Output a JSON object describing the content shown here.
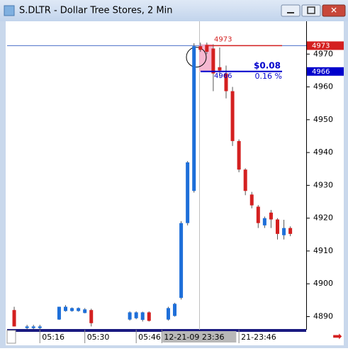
{
  "chart_data": {
    "type": "candlestick",
    "title": "S.DLTR - Dollar Tree Stores, 2 Min",
    "up_color": "#1e6fd9",
    "down_color": "#d42020",
    "categories": [
      null,
      null,
      null,
      null,
      "05:16",
      null,
      null,
      null,
      null,
      null,
      null,
      "05:30",
      null,
      null,
      null,
      null,
      null,
      null,
      null,
      "05:46",
      null,
      null,
      null,
      "12-21-09 23:36",
      null,
      null,
      null,
      null,
      null,
      null,
      null,
      null,
      null,
      null,
      null,
      "21-23:46",
      null,
      null,
      null,
      null,
      null,
      null,
      null,
      null
    ],
    "open": [
      4892,
      null,
      4886.5,
      4886.5,
      4886.5,
      null,
      null,
      4889.1,
      4891.7,
      4891.7,
      4891.7,
      4891.1,
      4892,
      null,
      null,
      null,
      null,
      null,
      4889.1,
      4889.5,
      4889,
      4891.3,
      null,
      null,
      4889.1,
      4890.2,
      4895.7,
      4918.5,
      4928.3,
      4972.4,
      4972.8,
      4971.7,
      4966,
      4964.1,
      4958.7,
      4943.5,
      4934.8,
      4927.2,
      4923.5,
      4917.8,
      4921.7,
      4919.6,
      4914.8,
      4917
    ],
    "high": [
      4893,
      null,
      4887.5,
      4887.5,
      4887.5,
      null,
      null,
      4893,
      4893.5,
      4892.8,
      4892.8,
      4892.6,
      4892.4,
      null,
      null,
      null,
      null,
      null,
      4891.6,
      4891.6,
      4891.5,
      4891.6,
      null,
      null,
      4893,
      4894.2,
      4919.1,
      4937.4,
      4973.3,
      4973.5,
      4973.5,
      4973,
      4972,
      4966.5,
      4960,
      4944,
      4935.2,
      4928,
      4924,
      4920.5,
      4922.5,
      4920,
      4919.5,
      4917.5
    ],
    "low": [
      4887,
      null,
      4886.2,
      4886.2,
      4886.2,
      null,
      null,
      4889,
      4891.5,
      4891.5,
      4891.5,
      4891,
      4887,
      null,
      null,
      null,
      null,
      null,
      4888.8,
      4889.2,
      4888.5,
      4888.5,
      null,
      null,
      4888.8,
      4890,
      4895.2,
      4917.8,
      4927.8,
      4970.7,
      4970,
      4958.7,
      4963,
      4956.5,
      4942,
      4934,
      4927,
      4923,
      4917,
      4917,
      4917,
      4913.5,
      4913.5,
      4914.5
    ],
    "close": [
      4887,
      null,
      4887,
      4887,
      4887,
      null,
      null,
      4893,
      4893,
      4892.6,
      4892.6,
      4892.2,
      4888,
      null,
      null,
      null,
      null,
      null,
      4891.3,
      4891.3,
      4891.3,
      4888.7,
      null,
      null,
      4892.6,
      4893.9,
      4918.5,
      4937,
      4972.4,
      4971.3,
      4970.7,
      4964.1,
      4965,
      4958.7,
      4943.5,
      4934.8,
      4928.3,
      4923.9,
      4918.5,
      4920,
      4919.6,
      4915.2,
      4917,
      4915.2
    ],
    "ylim": [
      4886,
      4980
    ],
    "yticks": [
      4890,
      4900,
      4910,
      4920,
      4930,
      4940,
      4950,
      4960,
      4970
    ],
    "markers": [
      {
        "value": 4973,
        "color": "#d42020"
      },
      {
        "value": 4966,
        "color": "#0000cc"
      }
    ],
    "change": "$0.08",
    "change_percent": "0.16 %"
  }
}
